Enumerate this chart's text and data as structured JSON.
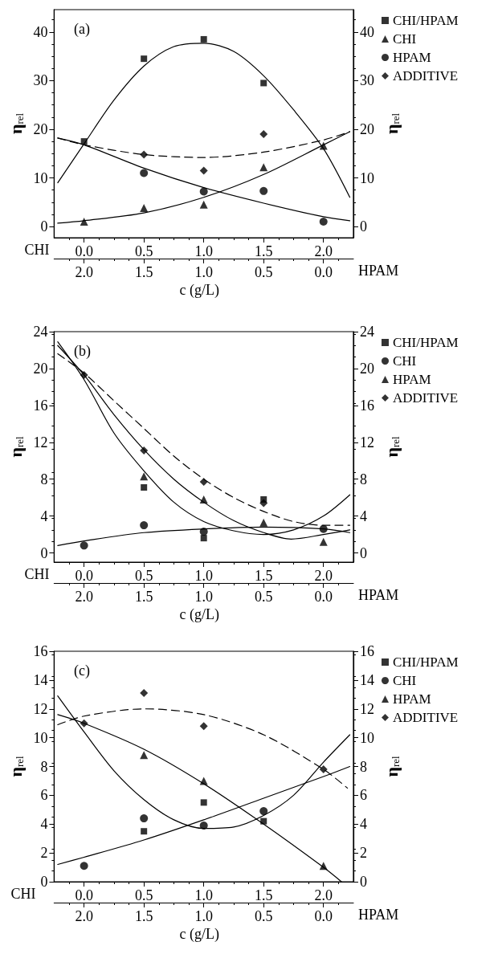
{
  "chart_data": [
    {
      "type": "scatter",
      "title": "(a)",
      "xlabel": "CHI",
      "x2label": "HPAM",
      "ylabel": "η$_{rel}$",
      "y2label": "η$_{rel}$",
      "annotations": [
        "c (g/L)"
      ],
      "legend": "top right",
      "xlim": [
        -0.25,
        2.25
      ],
      "xticks": [
        {
          "value": 0,
          "label": "0.0"
        },
        {
          "value": 0.5,
          "label": "0.5"
        },
        {
          "value": 1,
          "label": "1.0"
        },
        {
          "value": 1.5,
          "label": "1.5"
        },
        {
          "value": 2,
          "label": "2.0"
        }
      ],
      "x2lim": [
        2.25,
        -0.25
      ],
      "x2ticks": [
        {
          "value": 2,
          "label": "2.0"
        },
        {
          "value": 1.5,
          "label": "1.5"
        },
        {
          "value": 1,
          "label": "1.0"
        },
        {
          "value": 0.5,
          "label": "0.5"
        },
        {
          "value": 0,
          "label": "0.0"
        }
      ],
      "ylim": [
        -2.3,
        44.6
      ],
      "yticks": [
        0,
        10,
        20,
        30,
        40
      ],
      "y2lim": [
        -2.3,
        44.6
      ],
      "y2ticks": [
        0,
        10,
        20,
        30,
        40
      ],
      "x": [
        0,
        0.5,
        1,
        1.5,
        2
      ],
      "series": [
        {
          "name": "CHI/HPAM",
          "color": "#000000",
          "marker": "square",
          "values": [
            17.5,
            34.5,
            38.5,
            29.5,
            null
          ]
        },
        {
          "name": "CHI",
          "color": "#000000",
          "marker": "triangle",
          "values": [
            1.0,
            3.8,
            4.5,
            12.2,
            16.6
          ]
        },
        {
          "name": "HPAM",
          "color": "#000000",
          "marker": "circle",
          "values": [
            null,
            11.0,
            7.2,
            7.3,
            1.0
          ]
        },
        {
          "name": "ADDITIVE",
          "color": "#000000",
          "marker": "diamond",
          "values": [
            null,
            14.8,
            11.5,
            19.0,
            null
          ]
        },
        {
          "type": "line",
          "color": "#000000",
          "marker": "none",
          "line_style": "solid",
          "x": [
            -0.22,
            0,
            0.25,
            0.5,
            0.75,
            1,
            1.25,
            1.5,
            1.75,
            2,
            2.22
          ],
          "values": [
            9,
            17,
            26,
            33,
            37,
            37.7,
            36,
            31,
            24,
            16,
            6
          ]
        },
        {
          "type": "line",
          "color": "#000000",
          "marker": "none",
          "line_style": "solid",
          "x": [
            -0.22,
            0,
            0.5,
            1,
            1.5,
            2,
            2.22
          ],
          "values": [
            18.2,
            16.8,
            12,
            8,
            4.8,
            2,
            1.2
          ]
        },
        {
          "type": "line",
          "color": "#000000",
          "marker": "none",
          "line_style": "solid",
          "x": [
            -0.22,
            0,
            0.5,
            1,
            1.5,
            2,
            2.22
          ],
          "values": [
            0.7,
            1.2,
            2.8,
            6,
            10.7,
            16.8,
            19.5
          ]
        },
        {
          "type": "line",
          "color": "#000000",
          "marker": "none",
          "line_style": "dashed",
          "x": [
            -0.22,
            0,
            0.5,
            1,
            1.5,
            2,
            2.22
          ],
          "values": [
            18.2,
            16.8,
            14.8,
            14.2,
            15.3,
            17.8,
            19.5
          ]
        }
      ]
    },
    {
      "type": "scatter",
      "title": "(b)",
      "xlabel": "CHI",
      "x2label": "HPAM",
      "ylabel": "η$_{rel}$",
      "y2label": "η$_{rel}$",
      "annotations": [
        "c (g/L)"
      ],
      "legend": "top right",
      "xlim": [
        -0.25,
        2.25
      ],
      "xticks": [
        {
          "value": 0,
          "label": "0.0"
        },
        {
          "value": 0.5,
          "label": "0.5"
        },
        {
          "value": 1,
          "label": "1.0"
        },
        {
          "value": 1.5,
          "label": "1.5"
        },
        {
          "value": 2,
          "label": "2.0"
        }
      ],
      "x2lim": [
        2.25,
        -0.25
      ],
      "x2ticks": [
        {
          "value": 2,
          "label": "2.0"
        },
        {
          "value": 1.5,
          "label": "1.5"
        },
        {
          "value": 1,
          "label": "1.0"
        },
        {
          "value": 0.5,
          "label": "0.5"
        },
        {
          "value": 0,
          "label": "0.0"
        }
      ],
      "ylim": [
        -1,
        24
      ],
      "yticks": [
        0,
        4,
        8,
        12,
        16,
        20,
        24
      ],
      "y2lim": [
        -1,
        24
      ],
      "y2ticks": [
        0,
        4,
        8,
        12,
        16,
        20,
        24
      ],
      "x": [
        0,
        0.5,
        1,
        1.5,
        2
      ],
      "series": [
        {
          "name": "CHI/HPAM",
          "color": "#000000",
          "marker": "square",
          "values": [
            null,
            7.1,
            1.6,
            5.8,
            null
          ]
        },
        {
          "name": "CHI",
          "color": "#000000",
          "marker": "circle",
          "values": [
            0.8,
            3.0,
            2.3,
            null,
            2.6
          ]
        },
        {
          "name": "HPAM",
          "color": "#000000",
          "marker": "triangle",
          "values": [
            null,
            8.3,
            5.8,
            3.3,
            1.2
          ]
        },
        {
          "name": "ADDITIVE",
          "color": "#000000",
          "marker": "diamond",
          "values": [
            19.3,
            11.1,
            7.7,
            5.4,
            null
          ]
        },
        {
          "type": "line",
          "color": "#000000",
          "marker": "none",
          "line_style": "solid",
          "x": [
            -0.22,
            0,
            0.25,
            0.5,
            0.75,
            1,
            1.25,
            1.5,
            1.75,
            2,
            2.22
          ],
          "values": [
            22.9,
            18.8,
            13.0,
            8.9,
            5.5,
            3.4,
            2.4,
            2.0,
            2.5,
            4.0,
            6.3
          ]
        },
        {
          "type": "line",
          "color": "#000000",
          "marker": "none",
          "line_style": "solid",
          "x": [
            -0.22,
            0,
            0.25,
            0.5,
            0.75,
            1,
            1.25,
            1.5,
            1.73,
            2,
            2.22
          ],
          "values": [
            22.5,
            19.3,
            15.0,
            11.2,
            8.0,
            5.5,
            3.5,
            2.2,
            1.5,
            2.0,
            2.5
          ]
        },
        {
          "type": "line",
          "color": "#000000",
          "marker": "none",
          "line_style": "solid",
          "x": [
            -0.22,
            0,
            0.5,
            1,
            1.5,
            2,
            2.22
          ],
          "values": [
            0.8,
            1.3,
            2.2,
            2.6,
            2.8,
            2.6,
            2.2
          ]
        },
        {
          "type": "line",
          "color": "#000000",
          "marker": "none",
          "line_style": "dashed",
          "x": [
            -0.22,
            0,
            0.25,
            0.5,
            0.75,
            1,
            1.25,
            1.5,
            1.75,
            2,
            2.22
          ],
          "values": [
            21.6,
            19.5,
            16.5,
            13.5,
            10.5,
            8.0,
            6.0,
            4.5,
            3.4,
            3.0,
            3.0
          ]
        }
      ]
    },
    {
      "type": "scatter",
      "title": "(c)",
      "xlabel": "CHI",
      "x2label": "HPAM",
      "ylabel": "η$_{rel}$",
      "y2label": "η$_{rel}$",
      "annotations": [
        "c (g/L)"
      ],
      "legend": "top right",
      "xlim": [
        -0.25,
        2.25
      ],
      "xticks": [
        {
          "value": 0,
          "label": "0.0"
        },
        {
          "value": 0.5,
          "label": "0.5"
        },
        {
          "value": 1,
          "label": "1.0"
        },
        {
          "value": 1.5,
          "label": "1.5"
        },
        {
          "value": 2,
          "label": "2.0"
        }
      ],
      "x2lim": [
        2.25,
        -0.25
      ],
      "x2ticks": [
        {
          "value": 2,
          "label": "2.0"
        },
        {
          "value": 1.5,
          "label": "1.5"
        },
        {
          "value": 1,
          "label": "1.0"
        },
        {
          "value": 0.5,
          "label": "0.5"
        },
        {
          "value": 0,
          "label": "0.0"
        }
      ],
      "ylim": [
        0,
        16
      ],
      "yticks": [
        0,
        2,
        4,
        6,
        8,
        10,
        12,
        14,
        16
      ],
      "y2lim": [
        0,
        16
      ],
      "y2ticks": [
        0,
        2,
        4,
        6,
        8,
        10,
        12,
        14,
        16
      ],
      "x": [
        0,
        0.5,
        1,
        1.5,
        2
      ],
      "series": [
        {
          "name": "CHI/HPAM",
          "color": "#000000",
          "marker": "square",
          "values": [
            null,
            3.5,
            5.5,
            4.2,
            null
          ]
        },
        {
          "name": "CHI",
          "color": "#000000",
          "marker": "circle",
          "values": [
            1.1,
            4.4,
            3.9,
            4.9,
            null
          ]
        },
        {
          "name": "HPAM",
          "color": "#000000",
          "marker": "triangle",
          "values": [
            null,
            8.8,
            7.0,
            null,
            1.1
          ]
        },
        {
          "name": "ADDITIVE",
          "color": "#000000",
          "marker": "diamond",
          "values": [
            11.0,
            13.1,
            10.8,
            null,
            7.8
          ]
        },
        {
          "type": "line",
          "color": "#000000",
          "marker": "none",
          "line_style": "dashed",
          "x": [
            -0.22,
            0,
            0.5,
            1,
            1.5,
            2,
            2.2
          ],
          "values": [
            10.9,
            11.5,
            12.0,
            11.6,
            10.2,
            7.8,
            6.5
          ]
        },
        {
          "type": "line",
          "color": "#000000",
          "marker": "none",
          "line_style": "solid",
          "x": [
            -0.22,
            0,
            0.5,
            1,
            1.5,
            2,
            2.15
          ],
          "values": [
            11.6,
            11.0,
            9.2,
            6.8,
            4.0,
            1.0,
            0
          ]
        },
        {
          "type": "line",
          "color": "#000000",
          "marker": "none",
          "line_style": "solid",
          "x": [
            -0.22,
            0,
            0.25,
            0.5,
            0.75,
            1,
            1.25,
            1.5,
            1.75,
            2,
            2.22
          ],
          "values": [
            12.9,
            10.4,
            7.7,
            5.7,
            4.3,
            3.7,
            3.8,
            4.6,
            6.0,
            8.3,
            10.2
          ]
        },
        {
          "type": "line",
          "color": "#000000",
          "marker": "none",
          "line_style": "solid",
          "x": [
            -0.22,
            0,
            0.5,
            1,
            1.5,
            2,
            2.22
          ],
          "values": [
            1.2,
            1.7,
            2.9,
            4.3,
            5.8,
            7.3,
            8.0
          ]
        }
      ]
    }
  ]
}
